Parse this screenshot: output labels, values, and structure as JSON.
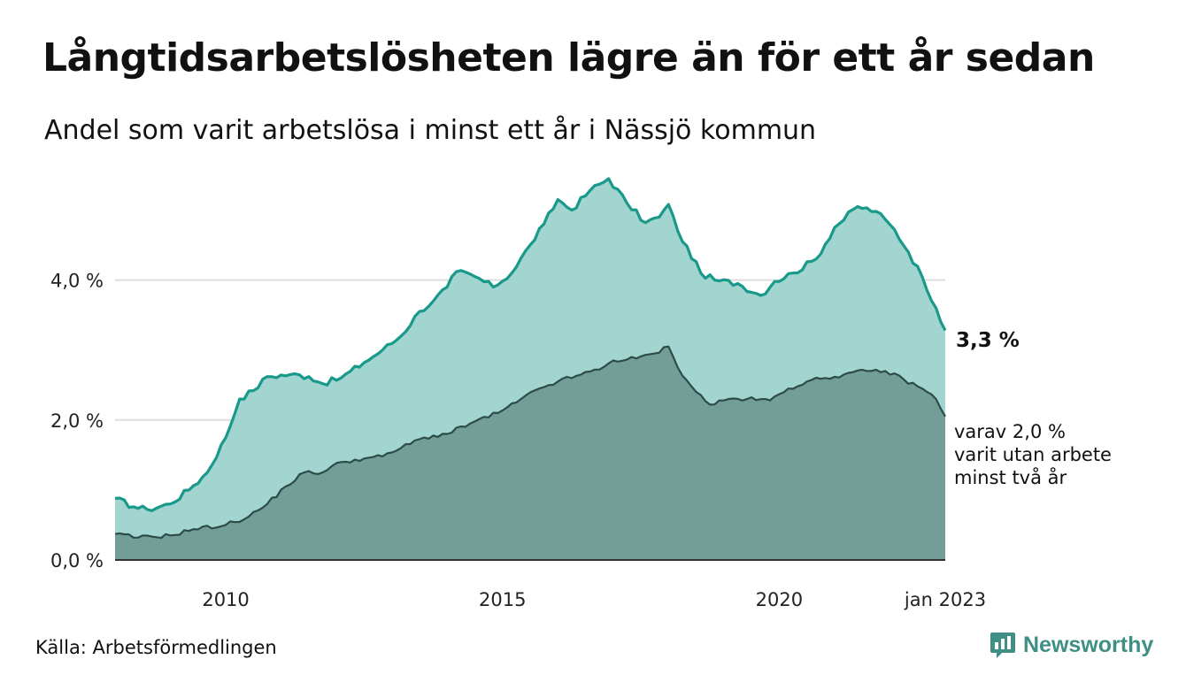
{
  "header": {
    "title": "Långtidsarbetslösheten lägre än för ett år sedan",
    "subtitle": "Andel som varit arbetslösa i minst ett år i Nässjö kommun"
  },
  "footer": {
    "source": "Källa: Arbetsförmedlingen",
    "brand": "Newsworthy"
  },
  "colors": {
    "area_outer": "#a2d5cf",
    "line_outer": "#19998a",
    "area_inner": "#739e97",
    "line_inner": "#2e4c47",
    "grid": "#dddddd",
    "axis": "#333333",
    "brand": "#3f8f84"
  },
  "chart_data": {
    "type": "area",
    "x_start": "2008-01",
    "x_end": "2023-01",
    "xlim": [
      "2008-01",
      "2023-01"
    ],
    "ylim": [
      0,
      5.6
    ],
    "grid": "horizontal",
    "y_ticks": [
      {
        "value": 0,
        "label": "0,0 %"
      },
      {
        "value": 2,
        "label": "2,0 %"
      },
      {
        "value": 4,
        "label": "4,0 %"
      }
    ],
    "x_ticks": [
      {
        "value": "2010-01",
        "label": "2010"
      },
      {
        "value": "2015-01",
        "label": "2015"
      },
      {
        "value": "2020-01",
        "label": "2020"
      },
      {
        "value": "2023-01",
        "label": "jan 2023"
      }
    ],
    "series": [
      {
        "key": "outer",
        "anchors": [
          [
            "2008-01",
            0.88
          ],
          [
            "2008-05",
            0.76
          ],
          [
            "2008-08",
            0.72
          ],
          [
            "2009-01",
            0.8
          ],
          [
            "2009-06",
            1.06
          ],
          [
            "2009-09",
            1.25
          ],
          [
            "2010-01",
            1.75
          ],
          [
            "2010-04",
            2.3
          ],
          [
            "2010-07",
            2.42
          ],
          [
            "2010-10",
            2.62
          ],
          [
            "2011-03",
            2.65
          ],
          [
            "2011-07",
            2.62
          ],
          [
            "2011-10",
            2.52
          ],
          [
            "2012-02",
            2.6
          ],
          [
            "2012-07",
            2.82
          ],
          [
            "2012-11",
            3.0
          ],
          [
            "2013-03",
            3.2
          ],
          [
            "2013-07",
            3.55
          ],
          [
            "2013-10",
            3.7
          ],
          [
            "2014-01",
            3.9
          ],
          [
            "2014-03",
            4.12
          ],
          [
            "2014-07",
            4.05
          ],
          [
            "2014-11",
            3.9
          ],
          [
            "2015-03",
            4.1
          ],
          [
            "2015-07",
            4.5
          ],
          [
            "2015-10",
            4.8
          ],
          [
            "2016-01",
            5.15
          ],
          [
            "2016-04",
            5.0
          ],
          [
            "2016-08",
            5.28
          ],
          [
            "2016-12",
            5.45
          ],
          [
            "2017-04",
            5.1
          ],
          [
            "2017-08",
            4.82
          ],
          [
            "2017-11",
            4.9
          ],
          [
            "2018-01",
            5.08
          ],
          [
            "2018-03",
            4.7
          ],
          [
            "2018-08",
            4.1
          ],
          [
            "2018-11",
            4.0
          ],
          [
            "2019-04",
            3.95
          ],
          [
            "2019-09",
            3.78
          ],
          [
            "2019-12",
            3.98
          ],
          [
            "2020-04",
            4.1
          ],
          [
            "2020-09",
            4.3
          ],
          [
            "2021-01",
            4.75
          ],
          [
            "2021-06",
            5.05
          ],
          [
            "2021-10",
            4.98
          ],
          [
            "2022-02",
            4.72
          ],
          [
            "2022-05",
            4.4
          ],
          [
            "2022-08",
            4.05
          ],
          [
            "2022-11",
            3.6
          ],
          [
            "2023-01",
            3.28
          ]
        ]
      },
      {
        "key": "inner",
        "anchors": [
          [
            "2008-01",
            0.37
          ],
          [
            "2008-06",
            0.32
          ],
          [
            "2009-01",
            0.35
          ],
          [
            "2009-06",
            0.44
          ],
          [
            "2010-01",
            0.5
          ],
          [
            "2010-06",
            0.62
          ],
          [
            "2010-10",
            0.8
          ],
          [
            "2011-02",
            1.05
          ],
          [
            "2011-06",
            1.25
          ],
          [
            "2011-10",
            1.25
          ],
          [
            "2012-02",
            1.4
          ],
          [
            "2012-07",
            1.45
          ],
          [
            "2012-11",
            1.48
          ],
          [
            "2013-03",
            1.6
          ],
          [
            "2013-08",
            1.75
          ],
          [
            "2014-01",
            1.8
          ],
          [
            "2014-06",
            1.95
          ],
          [
            "2014-12",
            2.1
          ],
          [
            "2015-04",
            2.25
          ],
          [
            "2015-09",
            2.45
          ],
          [
            "2016-01",
            2.55
          ],
          [
            "2016-06",
            2.65
          ],
          [
            "2016-10",
            2.72
          ],
          [
            "2017-01",
            2.85
          ],
          [
            "2017-06",
            2.88
          ],
          [
            "2017-10",
            2.95
          ],
          [
            "2018-01",
            3.05
          ],
          [
            "2018-03",
            2.75
          ],
          [
            "2018-07",
            2.4
          ],
          [
            "2018-10",
            2.22
          ],
          [
            "2019-02",
            2.3
          ],
          [
            "2019-06",
            2.3
          ],
          [
            "2019-11",
            2.28
          ],
          [
            "2020-03",
            2.45
          ],
          [
            "2020-07",
            2.55
          ],
          [
            "2020-11",
            2.6
          ],
          [
            "2021-03",
            2.65
          ],
          [
            "2021-08",
            2.7
          ],
          [
            "2021-12",
            2.7
          ],
          [
            "2022-04",
            2.58
          ],
          [
            "2022-08",
            2.45
          ],
          [
            "2022-11",
            2.3
          ],
          [
            "2023-01",
            2.05
          ]
        ]
      }
    ],
    "annotations": {
      "outer_end": "3,3 %",
      "inner_end": [
        "varav 2,0 %",
        "varit utan arbete",
        "minst två år"
      ]
    }
  }
}
